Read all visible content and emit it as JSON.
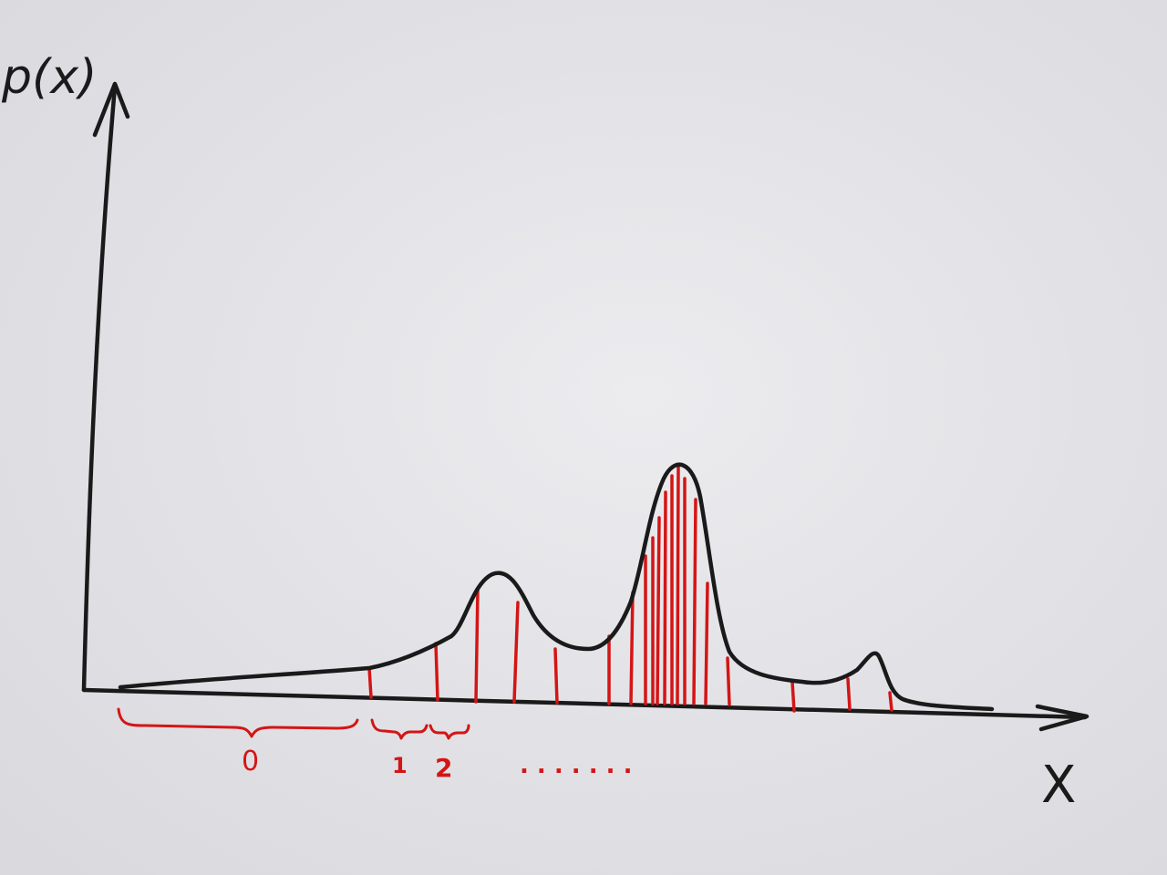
{
  "axes": {
    "y_label": "p(x)",
    "x_label": "X"
  },
  "colors": {
    "paper": "#e6e6e9",
    "ink": "#1a1a1a",
    "red": "#d41515"
  },
  "bin_labels": {
    "first": "0",
    "second": "1",
    "third": "2",
    "ellipsis": ". . . . . . ."
  }
}
